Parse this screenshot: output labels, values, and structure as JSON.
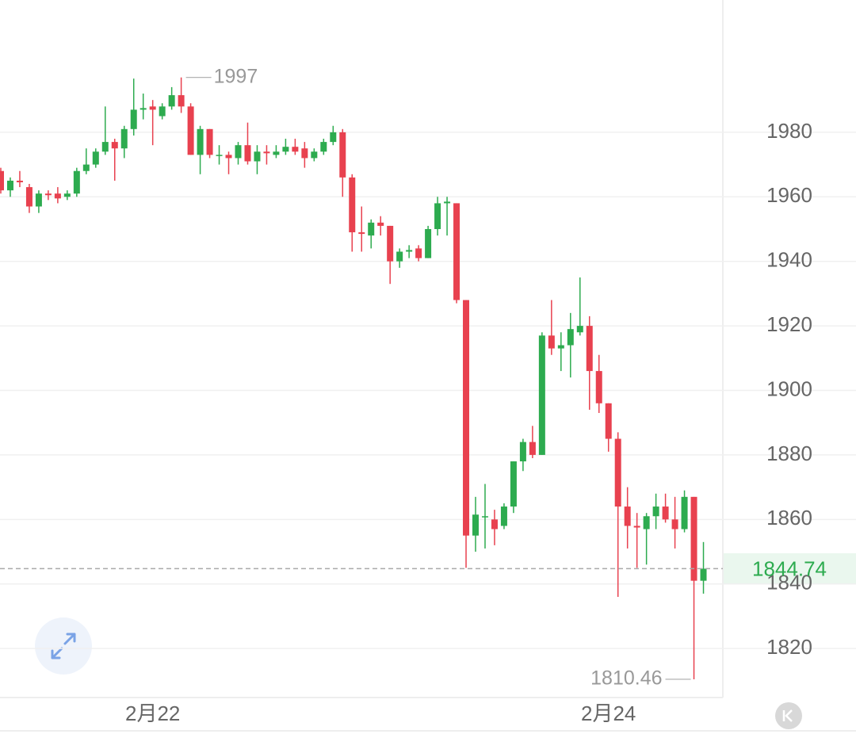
{
  "chart_data": {
    "type": "candlestick",
    "categories": [
      null,
      null,
      null,
      null,
      null,
      null,
      null,
      null,
      null,
      null,
      null,
      null,
      null,
      null,
      null,
      null,
      "2月22",
      null,
      null,
      null,
      null,
      null,
      null,
      null,
      null,
      null,
      null,
      null,
      null,
      null,
      null,
      null,
      null,
      null,
      null,
      null,
      null,
      null,
      null,
      null,
      null,
      null,
      null,
      null,
      null,
      null,
      null,
      null,
      null,
      null,
      null,
      null,
      null,
      null,
      null,
      null,
      null,
      null,
      null,
      null,
      null,
      null,
      null,
      null,
      "2月24",
      null,
      null,
      null,
      null,
      null,
      null,
      null,
      null,
      null,
      null
    ],
    "open": [
      1968,
      1962,
      1965,
      1963,
      1957,
      1961,
      1961,
      1960,
      1961,
      1968,
      1970,
      1974,
      1977,
      1975,
      1981,
      1987,
      1988,
      1985,
      1988,
      1991.5,
      1988,
      1973,
      1981,
      1973,
      1973,
      1972,
      1976,
      1971,
      1974,
      1973,
      1974,
      1975.5,
      1975,
      1972,
      1974,
      1977,
      1980,
      1966,
      1949,
      1948,
      1952,
      1951,
      1940,
      1943,
      1944,
      1941,
      1950,
      1958,
      1958,
      1928,
      1855,
      1861,
      1860,
      1858,
      1864,
      1878,
      1884,
      1880,
      1917,
      1913,
      1914,
      1918,
      1920,
      1906,
      1896,
      1885,
      1864,
      1858,
      1857,
      1861,
      1864,
      1860,
      1857,
      1867,
      1841
    ],
    "high": [
      1969,
      1966,
      1968,
      1964,
      1962,
      1962,
      1963,
      1962,
      1969,
      1975,
      1975,
      1988,
      1978,
      1982,
      1996.64,
      1992,
      1990,
      1989,
      1994,
      1997,
      1989,
      1982,
      1981,
      1976,
      1974,
      1977,
      1983,
      1976,
      1976,
      1976,
      1978,
      1978,
      1977,
      1975,
      1978,
      1982,
      1981,
      1967,
      1957,
      1953,
      1954,
      1951,
      1944,
      1945,
      1945,
      1951,
      1960,
      1960,
      1958,
      1928,
      1867,
      1871,
      1863,
      1865,
      1878,
      1885,
      1889,
      1918,
      1928,
      1918,
      1924,
      1935,
      1923,
      1911,
      1896,
      1887,
      1870,
      1862,
      1862,
      1868,
      1868,
      1867,
      1869,
      1867,
      1853
    ],
    "low": [
      1961,
      1960,
      1963,
      1955,
      1955,
      1959,
      1958,
      1959,
      1960,
      1967,
      1969,
      1973,
      1965,
      1972,
      1979,
      1984,
      1976,
      1984,
      1987,
      1986,
      1973,
      1967,
      1972,
      1970,
      1967,
      1970,
      1970,
      1967,
      1970,
      1972,
      1973,
      1973,
      1969,
      1971,
      1973,
      1976,
      1960,
      1943,
      1943,
      1944,
      1948,
      1933,
      1938,
      1941,
      1940,
      1941,
      1948,
      1948,
      1927,
      1845,
      1850,
      1851,
      1852,
      1857,
      1862,
      1875,
      1879,
      1880,
      1911,
      1906,
      1904,
      1917,
      1894,
      1893,
      1881,
      1836,
      1851,
      1845,
      1846,
      1857,
      1859,
      1851,
      1856,
      1810.46,
      1837
    ],
    "close": [
      1962,
      1965,
      1964.5,
      1957,
      1961,
      1960.5,
      1959.5,
      1961,
      1968,
      1970,
      1974,
      1977,
      1975,
      1981,
      1987,
      1987.5,
      1987,
      1988,
      1991.5,
      1988,
      1973,
      1981,
      1973,
      1973,
      1972,
      1976,
      1971,
      1974,
      1973.5,
      1974,
      1975.5,
      1974,
      1972,
      1974,
      1977,
      1980,
      1966,
      1949,
      1948.5,
      1952,
      1951,
      1940,
      1943,
      1943.5,
      1941,
      1950,
      1958,
      1958.5,
      1928,
      1855,
      1861.5,
      1861,
      1857,
      1864,
      1878,
      1884,
      1880,
      1917,
      1913,
      1914,
      1919,
      1920,
      1906,
      1896,
      1885,
      1864,
      1858,
      1857.5,
      1861,
      1864,
      1860,
      1857,
      1867,
      1841,
      1844.74
    ],
    "up_color": "#2dab4f",
    "down_color": "#e8414f",
    "ylim": [
      1804.8,
      2021
    ],
    "yticks": [
      1820,
      1840,
      1860,
      1880,
      1900,
      1920,
      1940,
      1960,
      1980
    ],
    "grid": true
  }
}
